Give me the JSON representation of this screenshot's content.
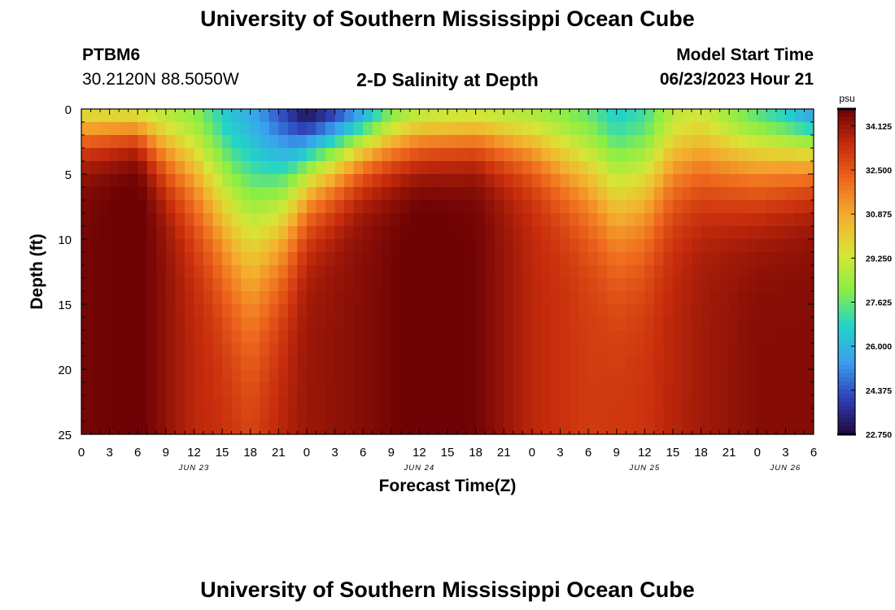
{
  "page": {
    "title": "University of Southern Mississippi Ocean Cube",
    "footer_title": "University of Southern Mississippi Ocean Cube"
  },
  "station": {
    "name": "PTBM6",
    "coords": "30.2120N  88.5050W"
  },
  "model": {
    "start_label": "Model Start Time",
    "start_value": "06/23/2023 Hour 21"
  },
  "chart_data": {
    "type": "heatmap",
    "title": "2-D Salinity at Depth",
    "xlabel": "Forecast Time(Z)",
    "ylabel": "Depth (ft)",
    "ylim": [
      0,
      25
    ],
    "y_ticks": [
      "0",
      "5",
      "10",
      "15",
      "20",
      "25"
    ],
    "x_ticks": [
      "0",
      "3",
      "6",
      "9",
      "12",
      "15",
      "18",
      "21",
      "0",
      "3",
      "6",
      "9",
      "12",
      "15",
      "18",
      "21",
      "0",
      "3",
      "6",
      "9",
      "12",
      "15",
      "18",
      "21",
      "0",
      "3",
      "6"
    ],
    "date_labels": [
      {
        "label": "JUN 23",
        "hour_index": 12
      },
      {
        "label": "JUN 24",
        "hour_index": 36
      },
      {
        "label": "JUN 25",
        "hour_index": 60
      },
      {
        "label": "JUN 26",
        "hour_index": 75
      }
    ],
    "x_range_hours": [
      0,
      78
    ],
    "colorbar": {
      "unit": "psu",
      "min": 22.75,
      "max": 34.75,
      "ticks": [
        "34.125",
        "32.500",
        "30.875",
        "29.250",
        "27.625",
        "26.000",
        "24.375",
        "22.750"
      ],
      "tick_values": [
        34.125,
        32.5,
        30.875,
        29.25,
        27.625,
        26.0,
        24.375,
        22.75
      ],
      "colors": [
        "#1e0a3c",
        "#2e40b8",
        "#3b9ff0",
        "#22d4c8",
        "#8cee44",
        "#d8e536",
        "#f4b02e",
        "#ef6a1e",
        "#c82d0c",
        "#6e0204"
      ]
    },
    "surface_salinity": [
      [
        0,
        29.6
      ],
      [
        6,
        29.4
      ],
      [
        12,
        28.2
      ],
      [
        16,
        26.2
      ],
      [
        18,
        25.8
      ],
      [
        21,
        24.4
      ],
      [
        24,
        22.9
      ],
      [
        27,
        24.0
      ],
      [
        30,
        25.6
      ],
      [
        33,
        27.9
      ],
      [
        36,
        28.9
      ],
      [
        42,
        29.1
      ],
      [
        48,
        28.6
      ],
      [
        54,
        27.6
      ],
      [
        57,
        26.6
      ],
      [
        60,
        27.1
      ],
      [
        63,
        28.9
      ],
      [
        66,
        29.3
      ],
      [
        69,
        28.3
      ],
      [
        72,
        27.4
      ],
      [
        75,
        26.6
      ],
      [
        78,
        25.3
      ]
    ],
    "bottom_salinity": [
      [
        0,
        34.6
      ],
      [
        6,
        34.9
      ],
      [
        12,
        33.6
      ],
      [
        18,
        33.2
      ],
      [
        24,
        34.1
      ],
      [
        30,
        34.4
      ],
      [
        36,
        34.9
      ],
      [
        42,
        34.7
      ],
      [
        48,
        33.6
      ],
      [
        54,
        33.1
      ],
      [
        60,
        33.3
      ],
      [
        66,
        34.0
      ],
      [
        72,
        34.4
      ],
      [
        78,
        34.4
      ]
    ],
    "halocline_depth_ft": [
      [
        0,
        3.0
      ],
      [
        6,
        2.5
      ],
      [
        12,
        6.5
      ],
      [
        16,
        10.5
      ],
      [
        18,
        12.2
      ],
      [
        21,
        9.5
      ],
      [
        24,
        6.0
      ],
      [
        30,
        4.0
      ],
      [
        36,
        3.5
      ],
      [
        42,
        3.2
      ],
      [
        48,
        4.0
      ],
      [
        54,
        6.5
      ],
      [
        57,
        8.5
      ],
      [
        60,
        8.0
      ],
      [
        63,
        6.0
      ],
      [
        66,
        5.5
      ],
      [
        72,
        5.5
      ],
      [
        78,
        4.5
      ]
    ]
  }
}
